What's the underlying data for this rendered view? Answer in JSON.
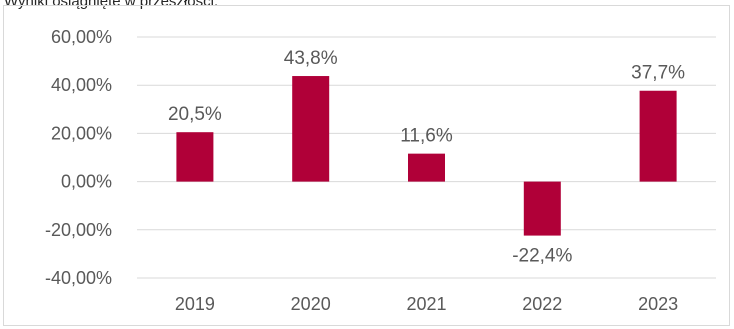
{
  "caption": "Wyniki osiągnięte w przeszłości.",
  "colors": {
    "bar": "#B00038",
    "grid": "#d9d9d9",
    "text": "#595959"
  },
  "chart_data": {
    "type": "bar",
    "categories": [
      "2019",
      "2020",
      "2021",
      "2022",
      "2023"
    ],
    "values": [
      20.5,
      43.8,
      11.6,
      -22.4,
      37.7
    ],
    "data_labels": [
      "20,5%",
      "43,8%",
      "11,6%",
      "-22,4%",
      "37,7%"
    ],
    "ylim": [
      -40,
      60
    ],
    "ytick_values": [
      60,
      40,
      20,
      0,
      -20,
      -40
    ],
    "ytick_labels": [
      "60,00%",
      "40,00%",
      "20,00%",
      "0,00%",
      "-20,00%",
      "-40,00%"
    ],
    "grid": true,
    "legend": "none"
  }
}
